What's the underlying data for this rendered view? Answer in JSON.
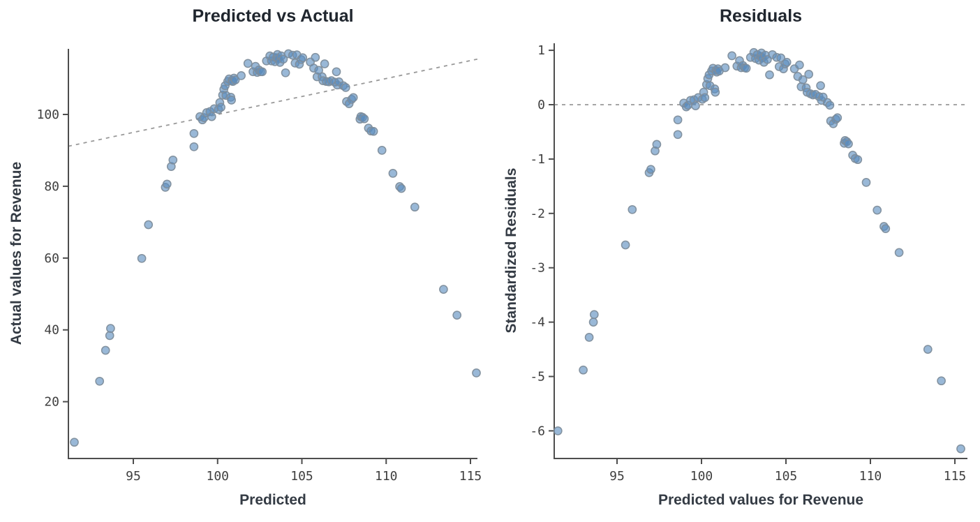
{
  "style": {
    "background": "#ffffff",
    "marker_fill": "#5b8cbe",
    "marker_edge": "#7e8d9b",
    "axis_color": "#4d4d4d",
    "tick_label_color": "#3f3f3f",
    "title_color": "#20262e",
    "label_color": "#343b44",
    "dashed_line_color": "#999999"
  },
  "chart_data": [
    {
      "type": "scatter",
      "title": "Predicted vs Actual",
      "xlabel": "Predicted",
      "ylabel": "Actual values for Revenue",
      "x_ticks": [
        95,
        100,
        105,
        110,
        115
      ],
      "y_ticks": [
        20,
        40,
        60,
        80,
        100
      ],
      "xlim": [
        91.1,
        115.4
      ],
      "ylim": [
        4.2,
        118.2
      ],
      "grid": false,
      "legend": "none",
      "reference_line": {
        "kind": "identity",
        "style": "dashed"
      },
      "x": [
        91.5,
        93.0,
        93.35,
        93.6,
        93.65,
        95.5,
        95.9,
        96.9,
        97.0,
        97.25,
        97.35,
        98.6,
        98.6,
        98.95,
        99.1,
        99.2,
        99.35,
        99.55,
        99.65,
        99.8,
        100.05,
        100.13,
        100.2,
        100.3,
        100.37,
        100.45,
        100.5,
        100.6,
        100.68,
        100.78,
        100.82,
        100.85,
        100.9,
        100.97,
        101.05,
        101.4,
        101.8,
        102.1,
        102.25,
        102.35,
        102.45,
        102.55,
        102.65,
        102.9,
        103.1,
        103.2,
        103.3,
        103.4,
        103.5,
        103.55,
        103.6,
        103.7,
        103.78,
        103.9,
        104.03,
        104.2,
        104.45,
        104.6,
        104.7,
        104.85,
        104.95,
        105.05,
        105.5,
        105.7,
        105.8,
        105.9,
        106.0,
        106.2,
        106.25,
        106.35,
        106.45,
        106.6,
        106.75,
        106.95,
        107.05,
        107.1,
        107.2,
        107.45,
        107.6,
        107.65,
        107.8,
        107.95,
        108.05,
        108.45,
        108.5,
        108.6,
        108.7,
        108.95,
        109.1,
        109.25,
        109.75,
        110.4,
        110.8,
        110.9,
        111.7,
        113.4,
        114.2,
        115.35
      ],
      "y": [
        8.7,
        25.7,
        34.3,
        38.4,
        40.4,
        59.9,
        69.3,
        79.7,
        80.6,
        85.5,
        87.3,
        91.0,
        94.7,
        99.4,
        98.5,
        99.1,
        100.5,
        100.8,
        99.4,
        101.6,
        101.4,
        103.3,
        102.0,
        105.4,
        107.0,
        108.0,
        105.3,
        109.2,
        109.9,
        104.8,
        104.0,
        109.5,
        109.2,
        110.1,
        109.6,
        110.8,
        114.2,
        111.9,
        113.4,
        111.7,
        112.4,
        111.9,
        111.9,
        114.9,
        116.3,
        114.9,
        116.0,
        114.7,
        115.8,
        116.7,
        115.5,
        114.5,
        116.3,
        115.4,
        111.6,
        116.9,
        116.5,
        114.3,
        116.6,
        114.0,
        115.3,
        115.8,
        114.6,
        112.9,
        115.9,
        110.5,
        112.3,
        110.5,
        109.4,
        114.1,
        109.2,
        109.1,
        109.4,
        109.0,
        111.9,
        108.2,
        109.1,
        108.0,
        107.5,
        103.6,
        103.0,
        104.2,
        104.7,
        98.7,
        99.4,
        99.2,
        98.8,
        96.2,
        95.4,
        95.3,
        90.0,
        83.6,
        79.9,
        79.4,
        74.2,
        51.3,
        44.1,
        28.0
      ]
    },
    {
      "type": "scatter",
      "title": "Residuals",
      "xlabel": "Predicted values for Revenue",
      "ylabel": "Standardized Residuals",
      "x_ticks": [
        95,
        100,
        105,
        110,
        115
      ],
      "y_ticks": [
        -6,
        -5,
        -4,
        -3,
        -2,
        -1,
        0,
        1
      ],
      "xlim": [
        91.3,
        115.7
      ],
      "ylim": [
        -6.6,
        1.15
      ],
      "grid": false,
      "legend": "none",
      "reference_line": {
        "kind": "horizontal",
        "y": 0,
        "style": "dashed"
      },
      "x": [
        91.5,
        93.0,
        93.35,
        93.6,
        93.65,
        95.5,
        95.9,
        96.9,
        97.0,
        97.25,
        97.35,
        98.6,
        98.6,
        98.95,
        99.1,
        99.2,
        99.35,
        99.55,
        99.65,
        99.8,
        100.05,
        100.13,
        100.2,
        100.3,
        100.37,
        100.45,
        100.5,
        100.6,
        100.68,
        100.78,
        100.82,
        100.85,
        100.9,
        100.97,
        101.05,
        101.4,
        101.8,
        102.1,
        102.25,
        102.35,
        102.45,
        102.55,
        102.65,
        102.9,
        103.1,
        103.2,
        103.3,
        103.4,
        103.5,
        103.55,
        103.6,
        103.7,
        103.78,
        103.9,
        104.03,
        104.2,
        104.45,
        104.6,
        104.7,
        104.85,
        104.95,
        105.05,
        105.5,
        105.7,
        105.8,
        105.9,
        106.0,
        106.2,
        106.25,
        106.35,
        106.45,
        106.6,
        106.75,
        106.95,
        107.05,
        107.1,
        107.2,
        107.45,
        107.6,
        107.65,
        107.8,
        107.95,
        108.05,
        108.45,
        108.5,
        108.6,
        108.7,
        108.95,
        109.1,
        109.25,
        109.75,
        110.4,
        110.8,
        110.9,
        111.7,
        113.4,
        114.2,
        115.35
      ],
      "y": [
        -6.0,
        -4.88,
        -4.28,
        -4.0,
        -3.86,
        -2.58,
        -1.93,
        -1.25,
        -1.19,
        -0.85,
        -0.73,
        -0.55,
        -0.28,
        0.03,
        -0.04,
        -0.01,
        0.08,
        0.09,
        -0.02,
        0.13,
        0.1,
        0.23,
        0.13,
        0.37,
        0.48,
        0.55,
        0.35,
        0.62,
        0.67,
        0.29,
        0.23,
        0.63,
        0.6,
        0.66,
        0.62,
        0.68,
        0.9,
        0.71,
        0.81,
        0.68,
        0.72,
        0.68,
        0.67,
        0.87,
        0.96,
        0.85,
        0.92,
        0.82,
        0.89,
        0.95,
        0.86,
        0.78,
        0.91,
        0.83,
        0.55,
        0.92,
        0.87,
        0.7,
        0.86,
        0.66,
        0.75,
        0.78,
        0.66,
        0.52,
        0.73,
        0.33,
        0.46,
        0.31,
        0.23,
        0.56,
        0.2,
        0.18,
        0.19,
        0.15,
        0.35,
        0.08,
        0.14,
        0.04,
        -0.01,
        -0.3,
        -0.35,
        -0.27,
        -0.24,
        -0.71,
        -0.66,
        -0.68,
        -0.72,
        -0.93,
        -0.99,
        -1.01,
        -1.43,
        -1.94,
        -2.24,
        -2.28,
        -2.72,
        -4.5,
        -5.08,
        -6.33
      ]
    }
  ]
}
